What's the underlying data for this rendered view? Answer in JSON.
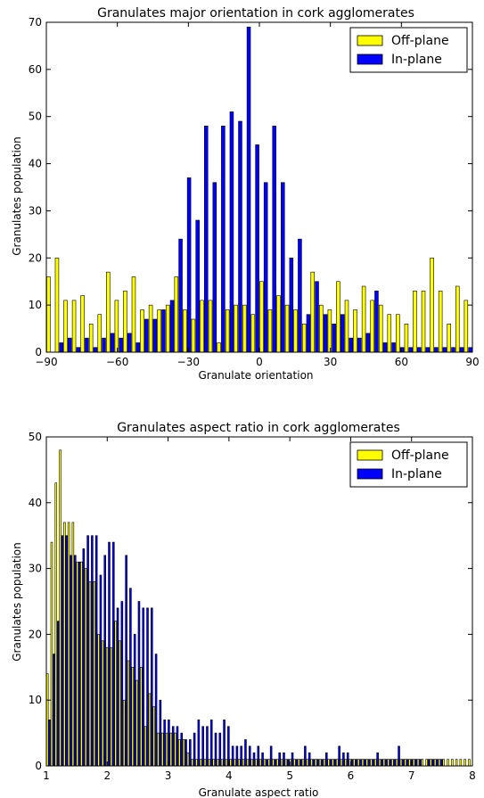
{
  "chart_data": [
    {
      "type": "bar",
      "title": "Granulates major orientation in cork agglomerates",
      "xlabel": "Granulate orientation",
      "ylabel": "Granulates population",
      "xlim": [
        -90,
        90
      ],
      "ylim": [
        0,
        70
      ],
      "xticks": [
        "-90",
        "-60",
        "-30",
        "0",
        "30",
        "60",
        "90"
      ],
      "yticks": [
        "0",
        "10",
        "20",
        "30",
        "40",
        "50",
        "60",
        "70"
      ],
      "legend_position": "top-right",
      "colors": {
        "Off-plane": "#ffff00",
        "In-plane": "#0000ff"
      },
      "bin_centers": [
        -88.2,
        -84.6,
        -81.0,
        -77.4,
        -73.8,
        -70.2,
        -66.6,
        -63.0,
        -59.4,
        -55.8,
        -52.2,
        -48.6,
        -45.0,
        -41.4,
        -37.8,
        -34.2,
        -30.6,
        -27.0,
        -23.4,
        -19.8,
        -16.2,
        -12.6,
        -9.0,
        -5.4,
        -1.8,
        1.8,
        5.4,
        9.0,
        12.6,
        16.2,
        19.8,
        23.4,
        27.0,
        30.6,
        34.2,
        37.8,
        41.4,
        45.0,
        48.6,
        52.2,
        55.8,
        59.4,
        63.0,
        66.6,
        70.2,
        73.8,
        77.4,
        81.0,
        84.6,
        88.2
      ],
      "series": [
        {
          "name": "Off-plane",
          "values": [
            16,
            20,
            11,
            11,
            12,
            6,
            8,
            17,
            11,
            13,
            16,
            9,
            10,
            9,
            10,
            16,
            9,
            7,
            11,
            11,
            2,
            9,
            10,
            10,
            8,
            15,
            9,
            12,
            10,
            9,
            6,
            17,
            10,
            9,
            15,
            11,
            9,
            14,
            11,
            10,
            8,
            8,
            6,
            13,
            13,
            20,
            13,
            6,
            14,
            11
          ]
        },
        {
          "name": "In-plane",
          "values": [
            0,
            2,
            3,
            1,
            3,
            1,
            3,
            4,
            3,
            4,
            2,
            7,
            7,
            9,
            11,
            24,
            37,
            28,
            48,
            36,
            48,
            51,
            49,
            69,
            44,
            36,
            48,
            36,
            20,
            24,
            8,
            15,
            8,
            6,
            8,
            3,
            3,
            4,
            13,
            2,
            2,
            1,
            1,
            1,
            1,
            1,
            1,
            1,
            1,
            1
          ]
        }
      ]
    },
    {
      "type": "bar",
      "title": "Granulates aspect ratio in cork agglomerates",
      "xlabel": "Granulate aspect ratio",
      "ylabel": "Granulates population",
      "xlim": [
        1,
        8
      ],
      "ylim": [
        0,
        50
      ],
      "xticks": [
        "1",
        "2",
        "3",
        "4",
        "5",
        "6",
        "7",
        "8"
      ],
      "yticks": [
        "0",
        "10",
        "20",
        "30",
        "40",
        "50"
      ],
      "legend_position": "top-right",
      "colors": {
        "Off-plane": "#ffff00",
        "In-plane": "#0000ff"
      },
      "bin_centers": [
        1.035,
        1.105,
        1.175,
        1.245,
        1.315,
        1.385,
        1.455,
        1.525,
        1.595,
        1.665,
        1.735,
        1.805,
        1.875,
        1.945,
        2.015,
        2.085,
        2.155,
        2.225,
        2.295,
        2.365,
        2.435,
        2.505,
        2.575,
        2.645,
        2.715,
        2.785,
        2.855,
        2.925,
        2.995,
        3.065,
        3.135,
        3.205,
        3.275,
        3.345,
        3.415,
        3.485,
        3.555,
        3.625,
        3.695,
        3.765,
        3.835,
        3.905,
        3.975,
        4.045,
        4.115,
        4.185,
        4.255,
        4.325,
        4.395,
        4.465,
        4.535,
        4.605,
        4.675,
        4.745,
        4.815,
        4.885,
        4.955,
        5.025,
        5.095,
        5.165,
        5.235,
        5.305,
        5.375,
        5.445,
        5.515,
        5.585,
        5.655,
        5.725,
        5.795,
        5.865,
        5.935,
        6.005,
        6.075,
        6.145,
        6.215,
        6.285,
        6.355,
        6.425,
        6.495,
        6.565,
        6.635,
        6.705,
        6.775,
        6.845,
        6.915,
        6.985,
        7.055,
        7.125,
        7.195,
        7.265,
        7.335,
        7.405,
        7.475,
        7.545,
        7.615,
        7.685,
        7.755,
        7.825,
        7.895,
        7.965
      ],
      "series": [
        {
          "name": "Off-plane",
          "values": [
            14,
            34,
            43,
            48,
            37,
            37,
            37,
            31,
            31,
            30,
            28,
            28,
            20,
            19,
            18,
            18,
            22,
            19,
            10,
            16,
            15,
            13,
            15,
            6,
            11,
            9,
            5,
            5,
            5,
            5,
            5,
            4,
            4,
            2,
            1,
            1,
            1,
            1,
            1,
            1,
            1,
            1,
            1,
            1,
            1,
            1,
            1,
            1,
            1,
            1,
            1,
            1,
            1,
            1,
            1,
            1,
            1,
            1,
            1,
            1,
            1,
            1,
            1,
            1,
            1,
            1,
            1,
            1,
            1,
            1,
            1,
            1,
            1,
            1,
            1,
            1,
            1,
            1,
            1,
            1,
            1,
            1,
            1,
            1,
            1,
            1,
            1,
            1,
            1,
            1,
            1,
            1,
            1,
            1,
            1,
            1,
            1,
            1,
            1,
            1
          ]
        },
        {
          "name": "In-plane",
          "values": [
            7,
            17,
            22,
            35,
            35,
            32,
            32,
            31,
            33,
            35,
            35,
            35,
            29,
            32,
            34,
            34,
            24,
            25,
            32,
            27,
            20,
            25,
            24,
            24,
            24,
            17,
            10,
            7,
            7,
            6,
            6,
            5,
            4,
            4,
            5,
            7,
            6,
            6,
            7,
            5,
            5,
            7,
            6,
            3,
            3,
            3,
            4,
            3,
            2,
            3,
            2,
            1,
            3,
            1,
            2,
            2,
            1,
            2,
            1,
            1,
            3,
            2,
            1,
            1,
            1,
            2,
            1,
            1,
            3,
            2,
            2,
            1,
            1,
            1,
            1,
            1,
            1,
            2,
            1,
            1,
            1,
            1,
            3,
            1,
            1,
            1,
            1,
            1,
            0,
            1,
            1,
            1,
            1,
            0,
            0,
            0,
            0,
            0,
            0,
            0
          ]
        }
      ]
    }
  ]
}
